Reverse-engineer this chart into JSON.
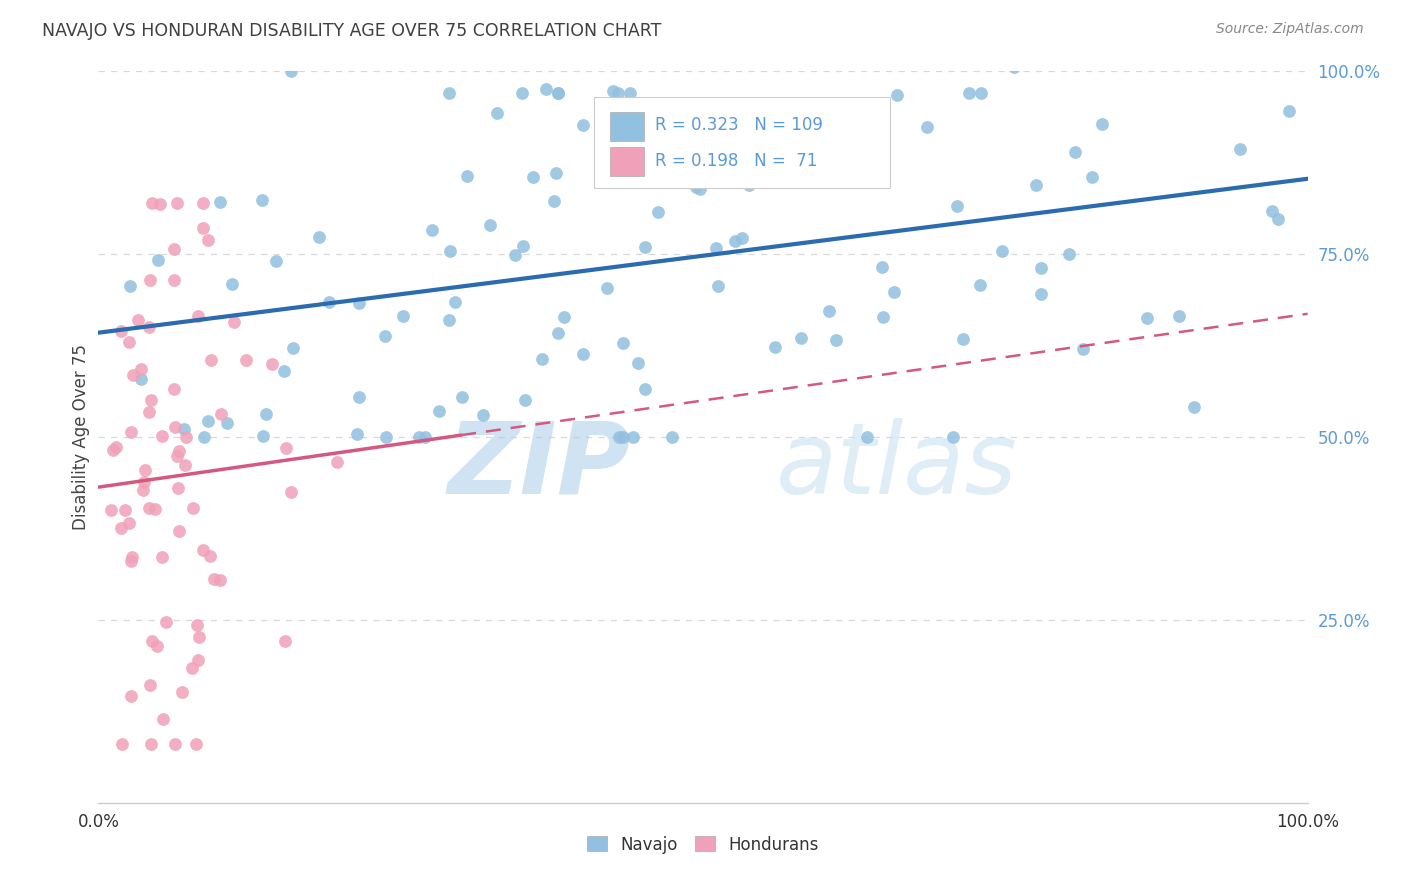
{
  "title": "NAVAJO VS HONDURAN DISABILITY AGE OVER 75 CORRELATION CHART",
  "source": "Source: ZipAtlas.com",
  "ylabel": "Disability Age Over 75",
  "navajo_R": 0.323,
  "navajo_N": 109,
  "honduran_R": 0.198,
  "honduran_N": 71,
  "navajo_color": "#92c0e0",
  "honduran_color": "#f0a0b8",
  "navajo_line_color": "#2b6cb0",
  "honduran_line_color": "#d45880",
  "watermark_zip": "ZIP",
  "watermark_atlas": "atlas",
  "background_color": "#ffffff",
  "grid_color": "#d8d8d8",
  "right_label_color": "#5b9bd5",
  "title_color": "#404040",
  "source_color": "#888888"
}
